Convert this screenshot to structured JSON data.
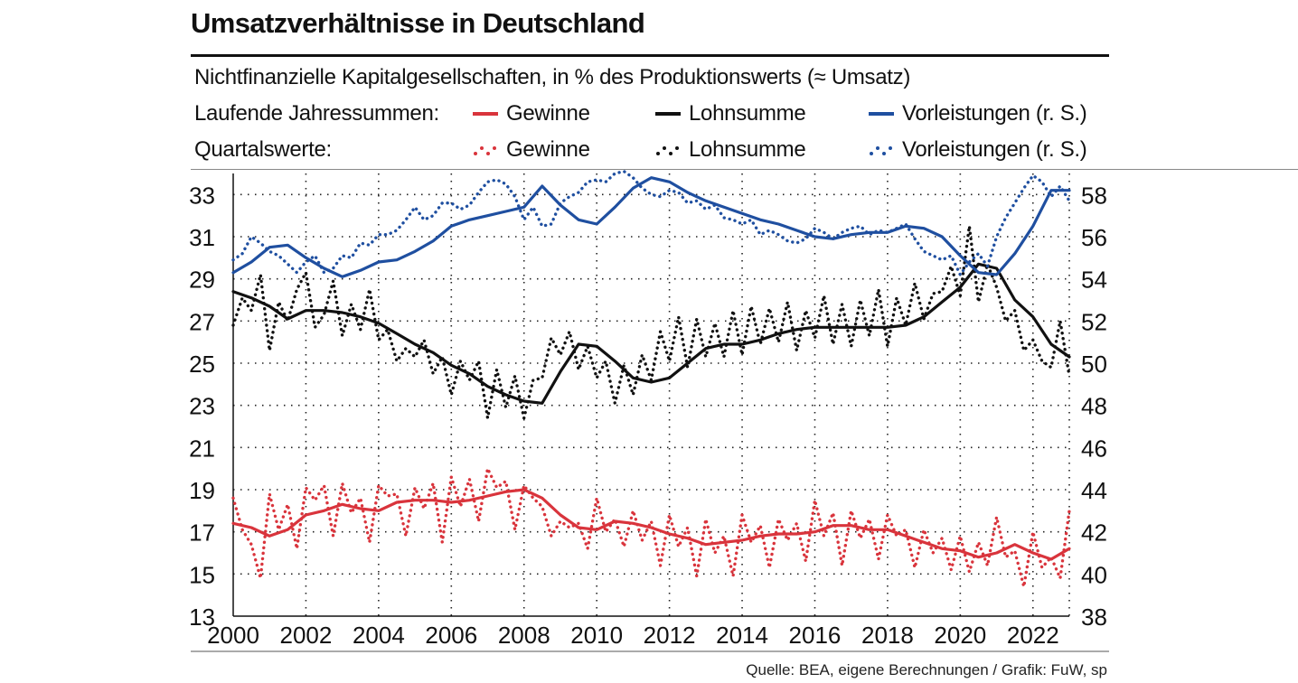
{
  "title": "Umsatzverhältnisse in Deutschland",
  "subtitle": "Nichtfinanzielle Kapitalgesellschaften, in % des Produktionswerts (≈ Umsatz)",
  "legend": {
    "row1_label": "Laufende Jahressummen:",
    "row2_label": "Quartalswerte:",
    "items": [
      "Gewinne",
      "Lohnsumme",
      "Vorleistungen (r. S.)"
    ]
  },
  "source": "Quelle: BEA, eigene Berechnungen / Grafik: FuW, sp",
  "colors": {
    "gewinne": "#d9343c",
    "lohnsumme": "#111111",
    "vorleistungen": "#1f4fa0"
  },
  "chart_data": {
    "type": "line",
    "title": "Umsatzverhältnisse in Deutschland",
    "x_range": [
      2000,
      2023
    ],
    "x_ticks": [
      "2000",
      "2002",
      "2004",
      "2006",
      "2008",
      "2010",
      "2012",
      "2014",
      "2016",
      "2018",
      "2020",
      "2022"
    ],
    "y_left": {
      "range": [
        13,
        34
      ],
      "ticks": [
        "13",
        "15",
        "17",
        "19",
        "21",
        "23",
        "25",
        "27",
        "29",
        "31",
        "33"
      ]
    },
    "y_right": {
      "range": [
        38,
        59
      ],
      "ticks": [
        "38",
        "40",
        "42",
        "44",
        "46",
        "48",
        "50",
        "52",
        "54",
        "56",
        "58"
      ]
    },
    "grid": "dotted",
    "series": [
      {
        "name": "Gewinne",
        "kind": "annual",
        "axis": "left",
        "color": "#d9343c",
        "x": [
          2000,
          2000.5,
          2001,
          2001.5,
          2002,
          2002.5,
          2003,
          2003.5,
          2004,
          2004.5,
          2005,
          2005.5,
          2006,
          2006.5,
          2007,
          2007.5,
          2008,
          2008.5,
          2009,
          2009.5,
          2010,
          2010.5,
          2011,
          2011.5,
          2012,
          2012.5,
          2013,
          2013.5,
          2014,
          2014.5,
          2015,
          2015.5,
          2016,
          2016.5,
          2017,
          2017.5,
          2018,
          2018.5,
          2019,
          2019.5,
          2020,
          2020.5,
          2021,
          2021.5,
          2022,
          2022.5,
          2023
        ],
        "y": [
          17.4,
          17.2,
          16.8,
          17.1,
          17.8,
          18,
          18.3,
          18.1,
          18,
          18.4,
          18.5,
          18.5,
          18.4,
          18.5,
          18.7,
          18.9,
          19,
          18.6,
          17.8,
          17.2,
          17.1,
          17.5,
          17.4,
          17.2,
          16.9,
          16.7,
          16.4,
          16.5,
          16.6,
          16.8,
          16.9,
          16.9,
          17,
          17.3,
          17.3,
          17.1,
          17.1,
          16.8,
          16.5,
          16.2,
          16.1,
          15.8,
          16,
          16.4,
          16,
          15.7,
          16.2
        ]
      },
      {
        "name": "Gewinne",
        "kind": "quarterly",
        "axis": "left",
        "color": "#d9343c",
        "x": [
          2000,
          2000.25,
          2000.5,
          2000.75,
          2001,
          2001.25,
          2001.5,
          2001.75,
          2002,
          2002.25,
          2002.5,
          2002.75,
          2003,
          2003.25,
          2003.5,
          2003.75,
          2004,
          2004.25,
          2004.5,
          2004.75,
          2005,
          2005.25,
          2005.5,
          2005.75,
          2006,
          2006.25,
          2006.5,
          2006.75,
          2007,
          2007.25,
          2007.5,
          2007.75,
          2008,
          2008.25,
          2008.5,
          2008.75,
          2009,
          2009.25,
          2009.5,
          2009.75,
          2010,
          2010.25,
          2010.5,
          2010.75,
          2011,
          2011.25,
          2011.5,
          2011.75,
          2012,
          2012.25,
          2012.5,
          2012.75,
          2013,
          2013.25,
          2013.5,
          2013.75,
          2014,
          2014.25,
          2014.5,
          2014.75,
          2015,
          2015.25,
          2015.5,
          2015.75,
          2016,
          2016.25,
          2016.5,
          2016.75,
          2017,
          2017.25,
          2017.5,
          2017.75,
          2018,
          2018.25,
          2018.5,
          2018.75,
          2019,
          2019.25,
          2019.5,
          2019.75,
          2020,
          2020.25,
          2020.5,
          2020.75,
          2021,
          2021.25,
          2021.5,
          2021.75,
          2022,
          2022.25,
          2022.5,
          2022.75,
          2023
        ],
        "y": [
          18.6,
          17.1,
          16.4,
          14.8,
          18.8,
          17.1,
          18.3,
          16.2,
          19.1,
          18.5,
          19.2,
          16.8,
          19.3,
          17.9,
          18.6,
          16.5,
          19.2,
          18.7,
          18.8,
          16.8,
          19.1,
          18.1,
          19.3,
          16.5,
          19.6,
          18.2,
          19.5,
          17.5,
          20,
          19.1,
          19.4,
          17.1,
          19.2,
          18.6,
          18.2,
          16.8,
          17.5,
          17.2,
          17.4,
          16.2,
          18.6,
          17,
          17.6,
          16.3,
          18,
          16.6,
          17.5,
          15.4,
          17.8,
          16.3,
          17.2,
          14.9,
          17.6,
          16,
          16.8,
          14.9,
          17.8,
          16.5,
          17.3,
          15.3,
          17.6,
          16.6,
          17.4,
          15.6,
          18.5,
          16.8,
          17.9,
          15.4,
          18,
          16.7,
          17.6,
          15.7,
          17.8,
          16.8,
          17.1,
          15.3,
          17.1,
          16,
          16.7,
          15.2,
          16.8,
          15.1,
          16.5,
          15.4,
          17.7,
          15.8,
          16.1,
          14.4,
          17,
          15.3,
          15.8,
          14.8,
          18
        ]
      },
      {
        "name": "Lohnsumme",
        "kind": "annual",
        "axis": "left",
        "color": "#111111",
        "x": [
          2000,
          2000.5,
          2001,
          2001.5,
          2002,
          2002.5,
          2003,
          2003.5,
          2004,
          2004.5,
          2005,
          2005.5,
          2006,
          2006.5,
          2007,
          2007.5,
          2008,
          2008.5,
          2009,
          2009.5,
          2010,
          2010.5,
          2011,
          2011.5,
          2012,
          2012.5,
          2013,
          2013.5,
          2014,
          2014.5,
          2015,
          2015.5,
          2016,
          2016.5,
          2017,
          2017.5,
          2018,
          2018.5,
          2019,
          2019.5,
          2020,
          2020.5,
          2021,
          2021.5,
          2022,
          2022.5,
          2023
        ],
        "y": [
          28.4,
          28.1,
          27.7,
          27.1,
          27.5,
          27.5,
          27.4,
          27.2,
          26.9,
          26.4,
          25.9,
          25.5,
          24.9,
          24.5,
          23.9,
          23.5,
          23.2,
          23.1,
          24.6,
          25.9,
          25.8,
          25.1,
          24.3,
          24.1,
          24.3,
          25,
          25.7,
          25.9,
          25.9,
          26.1,
          26.4,
          26.6,
          26.7,
          26.7,
          26.7,
          26.7,
          26.7,
          26.8,
          27.2,
          27.9,
          28.6,
          29.7,
          29.5,
          28,
          27.2,
          25.9,
          25.3
        ]
      },
      {
        "name": "Lohnsumme",
        "kind": "quarterly",
        "axis": "left",
        "color": "#111111",
        "x": [
          2000,
          2000.25,
          2000.5,
          2000.75,
          2001,
          2001.25,
          2001.5,
          2001.75,
          2002,
          2002.25,
          2002.5,
          2002.75,
          2003,
          2003.25,
          2003.5,
          2003.75,
          2004,
          2004.25,
          2004.5,
          2004.75,
          2005,
          2005.25,
          2005.5,
          2005.75,
          2006,
          2006.25,
          2006.5,
          2006.75,
          2007,
          2007.25,
          2007.5,
          2007.75,
          2008,
          2008.25,
          2008.5,
          2008.75,
          2009,
          2009.25,
          2009.5,
          2009.75,
          2010,
          2010.25,
          2010.5,
          2010.75,
          2011,
          2011.25,
          2011.5,
          2011.75,
          2012,
          2012.25,
          2012.5,
          2012.75,
          2013,
          2013.25,
          2013.5,
          2013.75,
          2014,
          2014.25,
          2014.5,
          2014.75,
          2015,
          2015.25,
          2015.5,
          2015.75,
          2016,
          2016.25,
          2016.5,
          2016.75,
          2017,
          2017.25,
          2017.5,
          2017.75,
          2018,
          2018.25,
          2018.5,
          2018.75,
          2019,
          2019.25,
          2019.5,
          2019.75,
          2020,
          2020.25,
          2020.5,
          2020.75,
          2021,
          2021.25,
          2021.5,
          2021.75,
          2022,
          2022.25,
          2022.5,
          2022.75,
          2023
        ],
        "y": [
          26.8,
          28.1,
          27.5,
          29.2,
          25.6,
          27.9,
          27,
          28.5,
          29.3,
          26.7,
          27.3,
          28.9,
          26.3,
          27.8,
          26.6,
          28.5,
          26.1,
          26.6,
          25.1,
          25.7,
          25.3,
          26.1,
          24.5,
          25.3,
          23.5,
          25.1,
          24.2,
          25.1,
          22.4,
          24.7,
          22.9,
          24.4,
          22.4,
          24.2,
          24.3,
          26.2,
          25.4,
          26.5,
          24.7,
          25.8,
          24.3,
          25.1,
          23.1,
          24.9,
          23.5,
          25.4,
          24.2,
          26.5,
          25.1,
          27.2,
          24.8,
          27.1,
          25.3,
          26.9,
          25.3,
          27.5,
          25.4,
          27.7,
          25.9,
          27.6,
          26,
          27.9,
          25.6,
          27.5,
          26.2,
          28.2,
          25.9,
          27.8,
          25.8,
          28,
          26.3,
          28.5,
          25.8,
          28.1,
          26.8,
          28.8,
          27.1,
          28.3,
          28.4,
          29.6,
          28.2,
          31.5,
          27.9,
          29.7,
          28.6,
          27,
          27.5,
          25.6,
          26.1,
          25.1,
          24.8,
          27,
          24.4
        ]
      },
      {
        "name": "Vorleistungen (r. S.)",
        "kind": "annual",
        "axis": "right",
        "color": "#1f4fa0",
        "x": [
          2000,
          2000.5,
          2001,
          2001.5,
          2002,
          2002.5,
          2003,
          2003.5,
          2004,
          2004.5,
          2005,
          2005.5,
          2006,
          2006.5,
          2007,
          2007.5,
          2008,
          2008.5,
          2009,
          2009.5,
          2010,
          2010.5,
          2011,
          2011.5,
          2012,
          2012.5,
          2013,
          2013.5,
          2014,
          2014.5,
          2015,
          2015.5,
          2016,
          2016.5,
          2017,
          2017.5,
          2018,
          2018.5,
          2019,
          2019.5,
          2020,
          2020.5,
          2021,
          2021.5,
          2022,
          2022.5,
          2023
        ],
        "y": [
          54.3,
          54.8,
          55.5,
          55.6,
          55,
          54.5,
          54.1,
          54.4,
          54.8,
          54.9,
          55.3,
          55.8,
          56.5,
          56.8,
          57,
          57.2,
          57.4,
          58.4,
          57.5,
          56.8,
          56.6,
          57.4,
          58.3,
          58.8,
          58.6,
          58.1,
          57.7,
          57.4,
          57.1,
          56.8,
          56.6,
          56.3,
          56,
          55.9,
          56.1,
          56.2,
          56.2,
          56.5,
          56.4,
          56,
          55.1,
          54.3,
          54.2,
          55.2,
          56.5,
          58.2,
          58.2
        ]
      },
      {
        "name": "Vorleistungen (r. S.)",
        "kind": "quarterly",
        "axis": "right",
        "color": "#1f4fa0",
        "x": [
          2000,
          2000.25,
          2000.5,
          2000.75,
          2001,
          2001.25,
          2001.5,
          2001.75,
          2002,
          2002.25,
          2002.5,
          2002.75,
          2003,
          2003.25,
          2003.5,
          2003.75,
          2004,
          2004.25,
          2004.5,
          2004.75,
          2005,
          2005.25,
          2005.5,
          2005.75,
          2006,
          2006.25,
          2006.5,
          2006.75,
          2007,
          2007.25,
          2007.5,
          2007.75,
          2008,
          2008.25,
          2008.5,
          2008.75,
          2009,
          2009.25,
          2009.5,
          2009.75,
          2010,
          2010.25,
          2010.5,
          2010.75,
          2011,
          2011.25,
          2011.5,
          2011.75,
          2012,
          2012.25,
          2012.5,
          2012.75,
          2013,
          2013.25,
          2013.5,
          2013.75,
          2014,
          2014.25,
          2014.5,
          2014.75,
          2015,
          2015.25,
          2015.5,
          2015.75,
          2016,
          2016.25,
          2016.5,
          2016.75,
          2017,
          2017.25,
          2017.5,
          2017.75,
          2018,
          2018.25,
          2018.5,
          2018.75,
          2019,
          2019.25,
          2019.5,
          2019.75,
          2020,
          2020.25,
          2020.5,
          2020.75,
          2021,
          2021.25,
          2021.5,
          2021.75,
          2022,
          2022.25,
          2022.5,
          2022.75,
          2023
        ],
        "y": [
          54.9,
          55.2,
          56,
          55.7,
          55.3,
          55.1,
          54.7,
          54.3,
          54.8,
          55.1,
          54.3,
          54.5,
          55.1,
          55,
          55.7,
          55.6,
          56.1,
          56.1,
          56.3,
          56.8,
          57.4,
          56.8,
          57,
          57.6,
          57.6,
          57.3,
          57.5,
          58.1,
          58.6,
          58.7,
          58.5,
          57.9,
          56.8,
          57.4,
          56.5,
          56.6,
          57.6,
          57.9,
          58.1,
          58.6,
          58.7,
          58.6,
          59,
          59.1,
          58.8,
          58.3,
          58,
          57.9,
          58.2,
          58.1,
          57.6,
          57.7,
          57.3,
          57.5,
          56.9,
          56.8,
          56.6,
          56.8,
          56.1,
          56.3,
          56.1,
          55.8,
          55.7,
          55.9,
          56.4,
          56.2,
          55.9,
          56.2,
          56.4,
          56.5,
          56.1,
          56.3,
          56.2,
          56.4,
          56.6,
          55.9,
          55.3,
          55.1,
          54.9,
          55.1,
          54.2,
          54.8,
          55.2,
          54.6,
          56,
          56.9,
          57.6,
          58.3,
          58.9,
          58.6,
          57.9,
          58.4,
          57.7
        ]
      }
    ]
  }
}
